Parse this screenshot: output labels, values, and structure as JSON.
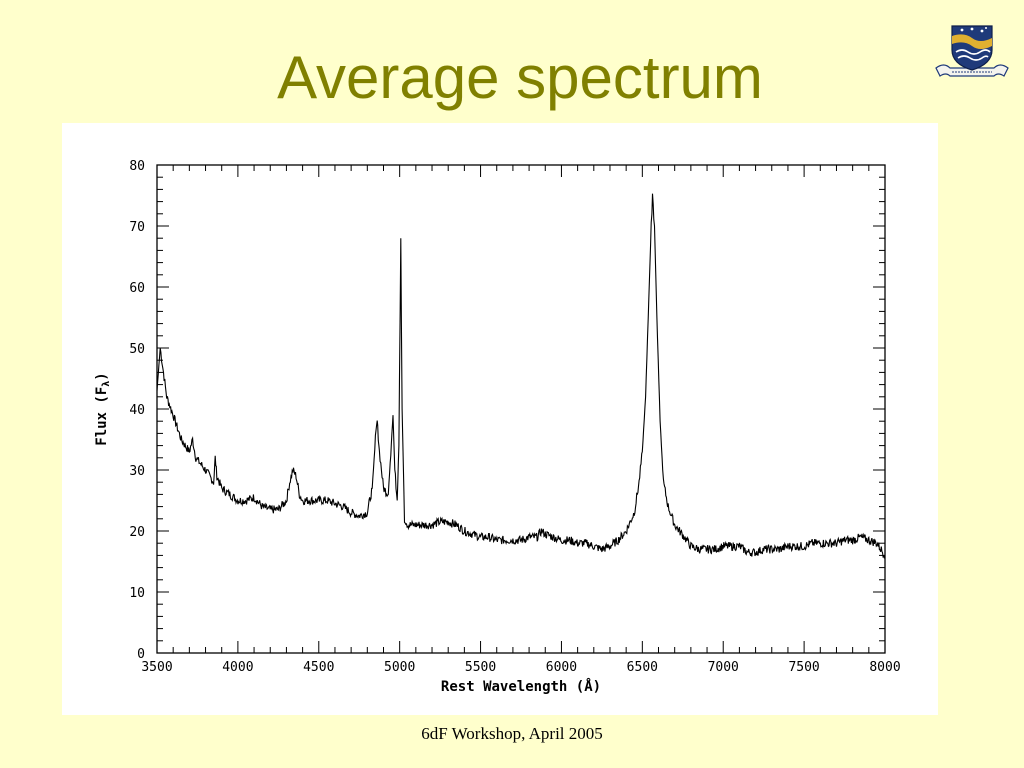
{
  "slide": {
    "title": "Average spectrum",
    "footer": "6dF Workshop, April 2005"
  },
  "logo": {
    "icon": "university-crest-icon",
    "motto": "NATURAM PRIMUM COGNOSCERE RERUM"
  },
  "colors": {
    "background": "#ffffcc",
    "title": "#808000",
    "plot_line": "#000000",
    "panel": "#ffffff"
  },
  "chart_data": {
    "type": "line",
    "title": "",
    "xlabel": "Rest Wavelength (Å)",
    "ylabel": "Flux (F",
    "ylabel_sub": "λ",
    "ylabel_end": ")",
    "xlim": [
      3500,
      8000
    ],
    "ylim": [
      0,
      80
    ],
    "xticks": [
      3500,
      4000,
      4500,
      5000,
      5500,
      6000,
      6500,
      7000,
      7500,
      8000
    ],
    "yticks": [
      0,
      10,
      20,
      30,
      40,
      50,
      60,
      70,
      80
    ],
    "grid": false,
    "legend": "none",
    "series": [
      {
        "x": [
          3500,
          3520,
          3540,
          3560,
          3600,
          3650,
          3700,
          3720,
          3740,
          3800,
          3850,
          3860,
          3870,
          3900,
          3950,
          4000,
          4050,
          4100,
          4150,
          4200,
          4250,
          4300,
          4320,
          4340,
          4360,
          4380,
          4400,
          4450,
          4500,
          4550,
          4600,
          4650,
          4700,
          4750,
          4800,
          4830,
          4850,
          4861,
          4875,
          4900,
          4930,
          4945,
          4959,
          4970,
          4985,
          4995,
          5007,
          5015,
          5030,
          5050,
          5100,
          5150,
          5200,
          5250,
          5300,
          5350,
          5400,
          5450,
          5500,
          5550,
          5600,
          5650,
          5700,
          5750,
          5800,
          5850,
          5876,
          5900,
          5950,
          6000,
          6050,
          6100,
          6150,
          6200,
          6250,
          6300,
          6350,
          6400,
          6450,
          6480,
          6500,
          6520,
          6540,
          6555,
          6563,
          6575,
          6590,
          6610,
          6630,
          6660,
          6700,
          6730,
          6760,
          6800,
          6850,
          6900,
          6950,
          7000,
          7050,
          7100,
          7150,
          7200,
          7250,
          7300,
          7350,
          7400,
          7450,
          7500,
          7550,
          7600,
          7650,
          7700,
          7750,
          7800,
          7850,
          7900,
          7950,
          8000
        ],
        "y": [
          43,
          50,
          46,
          42,
          39,
          35,
          33,
          35,
          32,
          30,
          28,
          32,
          29,
          27,
          26,
          25,
          25,
          25.5,
          24,
          23.5,
          23.5,
          25,
          28,
          30,
          29,
          26,
          25,
          25,
          25,
          25,
          24.5,
          24,
          23,
          22.5,
          23,
          27,
          35,
          38,
          33,
          27,
          26,
          33,
          39,
          30,
          25,
          34,
          68,
          40,
          22,
          21,
          21,
          21,
          21,
          21.5,
          21.5,
          21,
          20,
          19.5,
          19,
          19,
          18.5,
          18.5,
          18.5,
          18.5,
          19,
          19,
          20,
          19.5,
          19,
          18.5,
          18.5,
          18,
          18,
          17.5,
          17,
          17.5,
          18.5,
          20,
          23,
          28,
          33,
          42,
          58,
          70,
          75,
          70,
          55,
          38,
          28,
          24,
          21,
          20,
          19,
          17.5,
          17,
          17,
          17,
          17.5,
          17.5,
          17.5,
          16.5,
          16.5,
          17,
          17,
          17,
          17.5,
          17.5,
          17.5,
          18,
          18,
          18,
          18,
          18.5,
          18.5,
          19,
          18.5,
          18,
          16
        ]
      }
    ]
  }
}
